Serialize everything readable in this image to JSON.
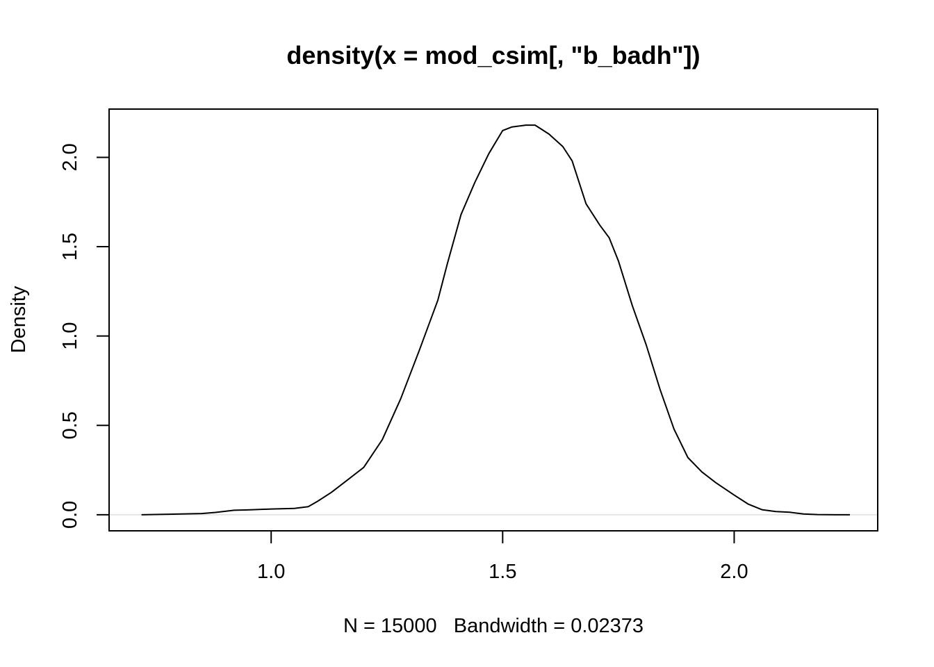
{
  "chart_data": {
    "type": "line",
    "title": "density(x = mod_csim[, \"b_badh\"])",
    "xlabel": "N = 15000   Bandwidth = 0.02373",
    "ylabel": "Density",
    "xlim": [
      0.65,
      2.31
    ],
    "ylim": [
      -0.09,
      2.27
    ],
    "x_ticks": [
      1.0,
      1.5,
      2.0
    ],
    "x_tick_labels": [
      "1.0",
      "1.5",
      "2.0"
    ],
    "y_ticks": [
      0.0,
      0.5,
      1.0,
      1.5,
      2.0
    ],
    "y_tick_labels": [
      "0.0",
      "0.5",
      "1.0",
      "1.5",
      "2.0"
    ],
    "grid": false,
    "zero_line": true,
    "colors": {
      "line": "#000000",
      "zero_line": "#d9d9d9",
      "background": "#ffffff"
    },
    "series": [
      {
        "x": [
          0.72,
          0.78,
          0.85,
          0.88,
          0.92,
          0.95,
          1.0,
          1.05,
          1.08,
          1.1,
          1.13,
          1.16,
          1.2,
          1.24,
          1.28,
          1.32,
          1.36,
          1.38,
          1.41,
          1.44,
          1.47,
          1.5,
          1.52,
          1.55,
          1.57,
          1.6,
          1.63,
          1.65,
          1.68,
          1.71,
          1.73,
          1.75,
          1.78,
          1.81,
          1.84,
          1.87,
          1.9,
          1.93,
          1.96,
          2.0,
          2.03,
          2.06,
          2.09,
          2.12,
          2.15,
          2.18,
          2.22,
          2.25
        ],
        "y": [
          0.0,
          0.003,
          0.007,
          0.013,
          0.025,
          0.027,
          0.032,
          0.035,
          0.045,
          0.075,
          0.125,
          0.185,
          0.265,
          0.42,
          0.65,
          0.92,
          1.2,
          1.4,
          1.68,
          1.86,
          2.02,
          2.15,
          2.17,
          2.18,
          2.18,
          2.13,
          2.06,
          1.98,
          1.74,
          1.62,
          1.55,
          1.42,
          1.17,
          0.95,
          0.7,
          0.48,
          0.32,
          0.24,
          0.18,
          0.11,
          0.06,
          0.028,
          0.018,
          0.014,
          0.004,
          0.001,
          0.0,
          0.0
        ]
      }
    ]
  }
}
